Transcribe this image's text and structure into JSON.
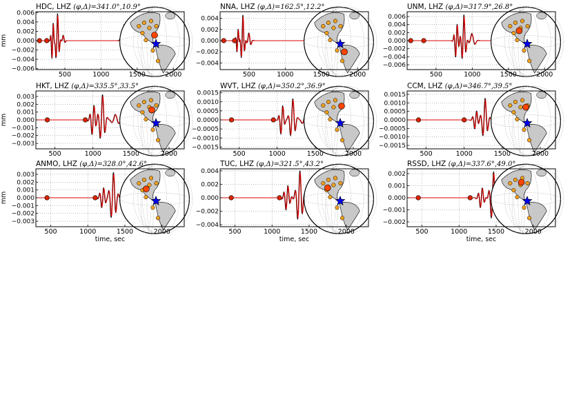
{
  "figure": {
    "xlabel": "time, sec",
    "ylabel": "mm",
    "colors": {
      "observed": "#000000",
      "synthetic": "#dd0000",
      "grid": "#777777",
      "land": "#c8c8c8",
      "event": "#0000ee",
      "station": "#f0a020",
      "station_active": "#ff4400"
    }
  },
  "chart_data": [
    {
      "type": "line",
      "station": "HDC",
      "channel": "LHZ",
      "phi": "341.0",
      "delta": "10.9",
      "title_prefix": "HDC, LHZ",
      "title_params": "(φ,Δ)=341.0°,10.9°",
      "xlim": [
        100,
        2150
      ],
      "xticks": [
        500,
        1000,
        1500,
        2000
      ],
      "xtick_labels": [
        "500",
        "1000",
        "1500",
        "2000"
      ],
      "ylim": [
        -0.0062,
        0.0062
      ],
      "yticks": [
        -0.006,
        -0.004,
        -0.002,
        0.0,
        0.002,
        0.004,
        0.006
      ],
      "ytick_labels": [
        "−0.006",
        "−0.004",
        "−0.002",
        "0.000",
        "0.002",
        "0.004",
        "0.006"
      ],
      "markers_x": [
        150,
        250
      ],
      "wave_groups": [
        {
          "t": 330,
          "w": 15,
          "amp": 0.0045,
          "f": 0.05
        },
        {
          "t": 395,
          "w": 18,
          "amp": 0.006,
          "f": 0.04
        },
        {
          "t": 480,
          "w": 14,
          "amp": 0.0012,
          "f": 0.03
        },
        {
          "t": 1330,
          "w": 28,
          "amp": 0.0038,
          "f": 0.035,
          "obs_only": true
        }
      ],
      "show_ylabel": true,
      "show_xlabel": false,
      "map": {
        "event": [
          0.52,
          0.53
        ],
        "active": [
          0.5,
          0.38
        ],
        "extra_red": null
      }
    },
    {
      "type": "line",
      "station": "NNA",
      "channel": "LHZ",
      "phi": "162.5",
      "delta": "12.2",
      "title_prefix": "NNA, LHZ",
      "title_params": "(φ,Δ)=162.5°,12.2°",
      "xlim": [
        100,
        2150
      ],
      "xticks": [
        500,
        1000,
        1500,
        2000
      ],
      "xtick_labels": [
        "500",
        "1000",
        "1500",
        "2000"
      ],
      "ylim": [
        -0.0052,
        0.0052
      ],
      "yticks": [
        -0.004,
        -0.002,
        0.0,
        0.002,
        0.004
      ],
      "ytick_labels": [
        "−0.004",
        "−0.002",
        "0.000",
        "0.002",
        "0.004"
      ],
      "markers_x": [
        150,
        300
      ],
      "wave_groups": [
        {
          "t": 340,
          "w": 14,
          "amp": 0.0025,
          "f": 0.05
        },
        {
          "t": 410,
          "w": 18,
          "amp": 0.0048,
          "f": 0.04
        },
        {
          "t": 500,
          "w": 20,
          "amp": 0.0014,
          "f": 0.03
        }
      ],
      "show_ylabel": false,
      "show_xlabel": false,
      "map": {
        "event": [
          0.52,
          0.53
        ],
        "active": [
          0.6,
          0.68
        ],
        "extra_red": null
      }
    },
    {
      "type": "line",
      "station": "UNM",
      "channel": "LHZ",
      "phi": "317.9",
      "delta": "26.8",
      "title_prefix": "UNM, LHZ",
      "title_params": "(φ,Δ)=317.9°,26.8°",
      "xlim": [
        100,
        2150
      ],
      "xticks": [
        500,
        1000,
        1500,
        2000
      ],
      "xtick_labels": [
        "500",
        "1000",
        "1500",
        "2000"
      ],
      "ylim": [
        -0.0072,
        0.0072
      ],
      "yticks": [
        -0.006,
        -0.004,
        -0.002,
        0.0,
        0.002,
        0.004,
        0.006
      ],
      "ytick_labels": [
        "−0.006",
        "−0.004",
        "−0.002",
        "0.000",
        "0.002",
        "0.004",
        "0.006"
      ],
      "markers_x": [
        150,
        330
      ],
      "wave_groups": [
        {
          "t": 780,
          "w": 20,
          "amp": 0.0048,
          "f": 0.04
        },
        {
          "t": 880,
          "w": 22,
          "amp": 0.0066,
          "f": 0.035
        },
        {
          "t": 1000,
          "w": 30,
          "amp": 0.0018,
          "f": 0.02
        }
      ],
      "show_ylabel": false,
      "show_xlabel": false,
      "map": {
        "event": [
          0.52,
          0.53
        ],
        "active": [
          0.38,
          0.3
        ],
        "extra_red": null
      }
    },
    {
      "type": "line",
      "station": "HKT",
      "channel": "LHZ",
      "phi": "335.5",
      "delta": "33.5",
      "title_prefix": "HKT, LHZ",
      "title_params": "(φ,Δ)=335.5°,33.5°",
      "xlim": [
        250,
        2200
      ],
      "xticks": [
        500,
        1000,
        1500,
        2000
      ],
      "xtick_labels": [
        "500",
        "1000",
        "1500",
        "2000"
      ],
      "ylim": [
        -0.0037,
        0.0037
      ],
      "yticks": [
        -0.003,
        -0.002,
        -0.001,
        0.0,
        0.001,
        0.002,
        0.003
      ],
      "ytick_labels": [
        "−0.003",
        "−0.002",
        "−0.001",
        "0.000",
        "0.001",
        "0.002",
        "0.003"
      ],
      "markers_x": [
        400,
        900
      ],
      "wave_groups": [
        {
          "t": 1000,
          "w": 25,
          "amp": 0.0021,
          "f": 0.035
        },
        {
          "t": 1120,
          "w": 28,
          "amp": 0.0033,
          "f": 0.03
        },
        {
          "t": 1300,
          "w": 40,
          "amp": 0.0007,
          "f": 0.02
        }
      ],
      "show_ylabel": true,
      "show_xlabel": false,
      "map": {
        "event": [
          0.52,
          0.53
        ],
        "active": [
          0.45,
          0.3
        ],
        "extra_red": null
      }
    },
    {
      "type": "line",
      "station": "WVT",
      "channel": "LHZ",
      "phi": "350.2",
      "delta": "36.9",
      "title_prefix": "WVT, LHZ",
      "title_params": "(φ,Δ)=350.2°,36.9°",
      "xlim": [
        250,
        2200
      ],
      "xticks": [
        500,
        1000,
        1500,
        2000
      ],
      "xtick_labels": [
        "500",
        "1000",
        "1500",
        "2000"
      ],
      "ylim": [
        -0.0016,
        0.0016
      ],
      "yticks": [
        -0.0015,
        -0.001,
        -0.0005,
        0.0,
        0.0005,
        0.001,
        0.0015
      ],
      "ytick_labels": [
        "−0.0015",
        "−0.0010",
        "−0.0005",
        "0.0000",
        "0.0005",
        "0.0010",
        "0.0015"
      ],
      "markers_x": [
        400,
        950
      ],
      "wave_groups": [
        {
          "t": 1060,
          "w": 22,
          "amp": 0.0009,
          "f": 0.035
        },
        {
          "t": 1200,
          "w": 28,
          "amp": 0.0012,
          "f": 0.03
        },
        {
          "t": 1380,
          "w": 40,
          "amp": 0.0004,
          "f": 0.02
        }
      ],
      "show_ylabel": false,
      "show_xlabel": false,
      "map": {
        "event": [
          0.52,
          0.53
        ],
        "active": [
          0.55,
          0.23
        ],
        "extra_red": null
      }
    },
    {
      "type": "line",
      "station": "CCM",
      "channel": "LHZ",
      "phi": "346.7",
      "delta": "39.5",
      "title_prefix": "CCM, LHZ",
      "title_params": "(φ,Δ)=346.7°,39.5°",
      "xlim": [
        250,
        2200
      ],
      "xticks": [
        500,
        1000,
        1500,
        2000
      ],
      "xtick_labels": [
        "500",
        "1000",
        "1500",
        "2000"
      ],
      "ylim": [
        -0.0017,
        0.0017
      ],
      "yticks": [
        -0.0015,
        -0.001,
        -0.0005,
        0.0,
        0.0005,
        0.001,
        0.0015
      ],
      "ytick_labels": [
        "−0.0015",
        "−0.0010",
        "−0.0005",
        "0.0000",
        "0.0005",
        "0.0010",
        "0.0015"
      ],
      "markers_x": [
        400,
        1000
      ],
      "wave_groups": [
        {
          "t": 1150,
          "w": 24,
          "amp": 0.0006,
          "f": 0.035
        },
        {
          "t": 1270,
          "w": 28,
          "amp": 0.0013,
          "f": 0.03
        },
        {
          "t": 1440,
          "w": 40,
          "amp": 0.0004,
          "f": 0.02
        }
      ],
      "show_ylabel": false,
      "show_xlabel": false,
      "map": {
        "event": [
          0.52,
          0.53
        ],
        "active": [
          0.5,
          0.25
        ],
        "extra_red": null
      }
    },
    {
      "type": "line",
      "station": "ANMO",
      "channel": "LHZ",
      "phi": "328.0",
      "delta": "42.6",
      "title_prefix": "ANMO, LHZ",
      "title_params": "(φ,Δ)=328.0°,42.6°",
      "xlim": [
        300,
        2300
      ],
      "xticks": [
        500,
        1000,
        1500,
        2000
      ],
      "xtick_labels": [
        "500",
        "1000",
        "1500",
        "2000"
      ],
      "ylim": [
        -0.0037,
        0.0037
      ],
      "yticks": [
        -0.003,
        -0.002,
        -0.001,
        0.0,
        0.001,
        0.002,
        0.003
      ],
      "ytick_labels": [
        "−0.003",
        "−0.002",
        "−0.001",
        "0.000",
        "0.001",
        "0.002",
        "0.003"
      ],
      "markers_x": [
        450,
        1100
      ],
      "wave_groups": [
        {
          "t": 1200,
          "w": 28,
          "amp": 0.0014,
          "f": 0.035
        },
        {
          "t": 1340,
          "w": 32,
          "amp": 0.0033,
          "f": 0.03
        },
        {
          "t": 1550,
          "w": 40,
          "amp": 0.0005,
          "f": 0.02
        }
      ],
      "show_ylabel": true,
      "show_xlabel": true,
      "map": {
        "event": [
          0.52,
          0.53
        ],
        "active": [
          0.35,
          0.32
        ],
        "extra_red": null
      }
    },
    {
      "type": "line",
      "station": "TUC",
      "channel": "LHZ",
      "phi": "321.5",
      "delta": "43.2",
      "title_prefix": "TUC, LHZ",
      "title_params": "(φ,Δ)=321.5°,43.2°",
      "xlim": [
        300,
        2300
      ],
      "xticks": [
        500,
        1000,
        1500,
        2000
      ],
      "xtick_labels": [
        "500",
        "1000",
        "1500",
        "2000"
      ],
      "ylim": [
        -0.0043,
        0.0043
      ],
      "yticks": [
        -0.004,
        -0.002,
        0.0,
        0.002,
        0.004
      ],
      "ytick_labels": [
        "−0.004",
        "−0.002",
        "0.000",
        "0.002",
        "0.004"
      ],
      "markers_x": [
        450,
        1100
      ],
      "wave_groups": [
        {
          "t": 1200,
          "w": 28,
          "amp": 0.002,
          "f": 0.035
        },
        {
          "t": 1370,
          "w": 32,
          "amp": 0.0041,
          "f": 0.03
        },
        {
          "t": 1580,
          "w": 40,
          "amp": 0.0006,
          "f": 0.02
        }
      ],
      "show_ylabel": false,
      "show_xlabel": true,
      "map": {
        "event": [
          0.52,
          0.53
        ],
        "active": [
          0.3,
          0.3
        ],
        "extra_red": null
      }
    },
    {
      "type": "line",
      "station": "RSSD",
      "channel": "LHZ",
      "phi": "337.6",
      "delta": "49.0",
      "title_prefix": "RSSD, LHZ",
      "title_params": "(φ,Δ)=337.6°,49.0°",
      "xlim": [
        300,
        2300
      ],
      "xticks": [
        500,
        1000,
        1500,
        2000
      ],
      "xtick_labels": [
        "500",
        "1000",
        "1500",
        "2000"
      ],
      "ylim": [
        -0.0024,
        0.0024
      ],
      "yticks": [
        -0.002,
        -0.001,
        0.0,
        0.001,
        0.002
      ],
      "ytick_labels": [
        "−0.002",
        "−0.001",
        "0.000",
        "0.001",
        "0.002"
      ],
      "markers_x": [
        450,
        1150
      ],
      "wave_groups": [
        {
          "t": 1300,
          "w": 28,
          "amp": 0.0009,
          "f": 0.035
        },
        {
          "t": 1460,
          "w": 32,
          "amp": 0.0022,
          "f": 0.03
        },
        {
          "t": 1680,
          "w": 40,
          "amp": 0.0004,
          "f": 0.02
        }
      ],
      "show_ylabel": false,
      "show_xlabel": true,
      "map": {
        "event": [
          0.52,
          0.53
        ],
        "active": [
          0.42,
          0.2
        ],
        "extra_red": null
      }
    }
  ]
}
